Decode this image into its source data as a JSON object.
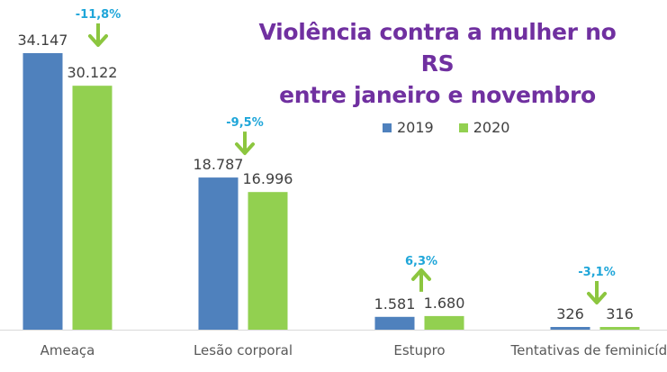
{
  "chart_data": {
    "type": "bar",
    "title": "Violência contra a mulher no RS entre janeiro e novembro",
    "title_lines": [
      "Violência contra a mulher no RS",
      "entre janeiro e novembro"
    ],
    "categories": [
      "Ameaça",
      "Lesão corporal",
      "Estupro",
      "Tentativas de feminicídio"
    ],
    "series": [
      {
        "name": "2019",
        "color": "#4f81bd",
        "values": [
          34147,
          18787,
          1581,
          326
        ],
        "labels": [
          "34.147",
          "18.787",
          "1.581",
          "326"
        ]
      },
      {
        "name": "2020",
        "color": "#92d050",
        "values": [
          30122,
          16996,
          1680,
          316
        ],
        "labels": [
          "30.122",
          "16.996",
          "1.680",
          "316"
        ]
      }
    ],
    "annotations": [
      {
        "category": "Ameaça",
        "text": "-11,8%",
        "direction": "down"
      },
      {
        "category": "Lesão corporal",
        "text": "-9,5%",
        "direction": "down"
      },
      {
        "category": "Estupro",
        "text": "6,3%",
        "direction": "up"
      },
      {
        "category": "Tentativas de feminicídio",
        "text": "-3,1%",
        "direction": "down"
      }
    ],
    "xlabel": "",
    "ylabel": "",
    "ylim": [
      0,
      34147
    ],
    "grid": false,
    "legend_position": "top-right",
    "colors": {
      "title": "#7030a0",
      "annotation_text": "#1fa6d9",
      "arrow": "#8cc63f",
      "label_text": "#404040",
      "axis": "#d9d9d9"
    }
  }
}
